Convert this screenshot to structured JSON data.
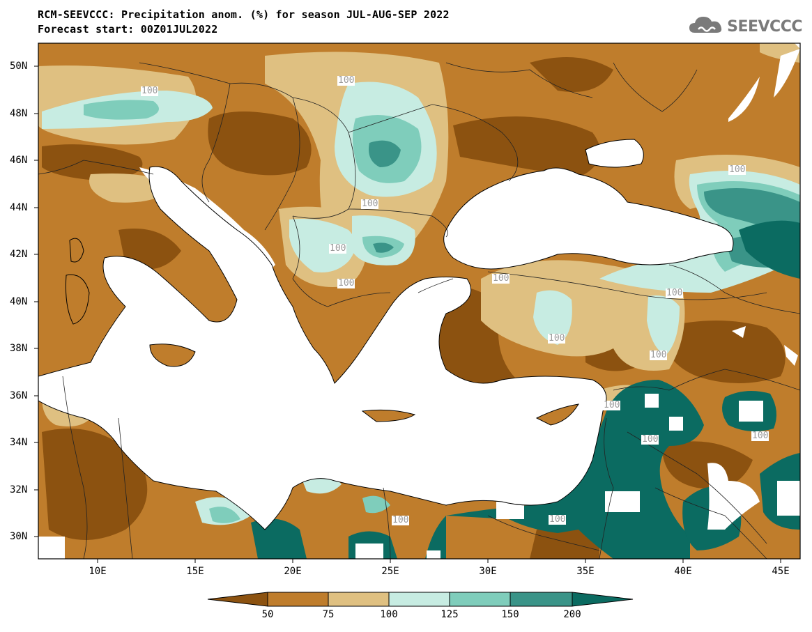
{
  "title": {
    "line1": "RCM-SEEVCCC: Precipitation anom. (%) for season JUL-AUG-SEP 2022",
    "line2": "Forecast start: 00Z01JUL2022"
  },
  "logo": {
    "text": "SEEVCCC",
    "icon": "cloud-logo-icon"
  },
  "axes": {
    "lat_labels": [
      "50N",
      "48N",
      "46N",
      "44N",
      "42N",
      "40N",
      "38N",
      "36N",
      "34N",
      "32N",
      "30N"
    ],
    "lon_labels": [
      "10E",
      "15E",
      "20E",
      "25E",
      "30E",
      "35E",
      "40E",
      "45E"
    ]
  },
  "colorbar": {
    "labels": [
      "50",
      "75",
      "100",
      "125",
      "150",
      "200"
    ],
    "colors": [
      "#8c5210",
      "#bf7d2c",
      "#dfc081",
      "#c7ece2",
      "#7fcdbb",
      "#3a9488",
      "#0b6b61"
    ]
  },
  "contour_label": "100"
}
